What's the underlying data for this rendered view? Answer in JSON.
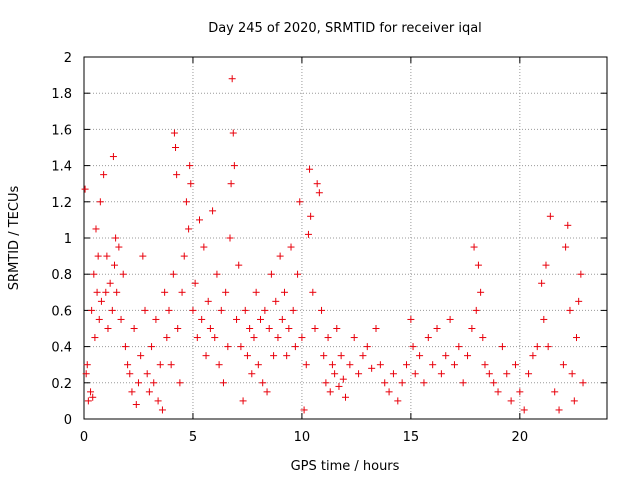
{
  "chart_data": {
    "type": "scatter",
    "title": "Day 245 of 2020, SRMTID for receiver iqal",
    "xlabel": "GPS time / hours",
    "ylabel": "SRMTID / TECUs",
    "xlim": [
      0,
      24
    ],
    "ylim": [
      0,
      2
    ],
    "x_ticks": [
      0,
      5,
      10,
      15,
      20
    ],
    "y_ticks": [
      0,
      0.2,
      0.4,
      0.6,
      0.8,
      1,
      1.2,
      1.4,
      1.6,
      1.8,
      2
    ],
    "x_tick_labels": [
      "0",
      "5",
      "10",
      "15",
      "20"
    ],
    "y_tick_labels": [
      "0",
      "0.2",
      "0.4",
      "0.6",
      "0.8",
      "1",
      "1.2",
      "1.4",
      "1.6",
      "1.8",
      "2"
    ],
    "grid": true,
    "marker": "+",
    "marker_color": "#e8000b",
    "series": [
      {
        "name": "SRMTID",
        "points": [
          [
            0.05,
            1.27
          ],
          [
            0.1,
            0.25
          ],
          [
            0.15,
            0.3
          ],
          [
            0.2,
            0.1
          ],
          [
            0.3,
            0.15
          ],
          [
            0.35,
            0.6
          ],
          [
            0.4,
            0.12
          ],
          [
            0.45,
            0.8
          ],
          [
            0.5,
            0.45
          ],
          [
            0.55,
            1.05
          ],
          [
            0.6,
            0.7
          ],
          [
            0.65,
            0.9
          ],
          [
            0.7,
            0.55
          ],
          [
            0.75,
            1.2
          ],
          [
            0.8,
            0.65
          ],
          [
            0.9,
            1.35
          ],
          [
            1.0,
            0.7
          ],
          [
            1.05,
            0.9
          ],
          [
            1.1,
            0.5
          ],
          [
            1.2,
            0.75
          ],
          [
            1.3,
            0.6
          ],
          [
            1.35,
            1.45
          ],
          [
            1.4,
            0.85
          ],
          [
            1.45,
            1.0
          ],
          [
            1.5,
            0.7
          ],
          [
            1.6,
            0.95
          ],
          [
            1.7,
            0.55
          ],
          [
            1.8,
            0.8
          ],
          [
            1.9,
            0.4
          ],
          [
            2.0,
            0.3
          ],
          [
            2.1,
            0.25
          ],
          [
            2.2,
            0.15
          ],
          [
            2.3,
            0.5
          ],
          [
            2.4,
            0.08
          ],
          [
            2.5,
            0.2
          ],
          [
            2.6,
            0.35
          ],
          [
            2.7,
            0.9
          ],
          [
            2.8,
            0.6
          ],
          [
            2.9,
            0.25
          ],
          [
            3.0,
            0.15
          ],
          [
            3.1,
            0.4
          ],
          [
            3.2,
            0.2
          ],
          [
            3.3,
            0.55
          ],
          [
            3.4,
            0.1
          ],
          [
            3.5,
            0.3
          ],
          [
            3.6,
            0.05
          ],
          [
            3.7,
            0.7
          ],
          [
            3.8,
            0.45
          ],
          [
            3.9,
            0.6
          ],
          [
            4.0,
            0.3
          ],
          [
            4.1,
            0.8
          ],
          [
            4.15,
            1.58
          ],
          [
            4.2,
            1.5
          ],
          [
            4.25,
            1.35
          ],
          [
            4.3,
            0.5
          ],
          [
            4.4,
            0.2
          ],
          [
            4.5,
            0.7
          ],
          [
            4.6,
            0.9
          ],
          [
            4.7,
            1.2
          ],
          [
            4.8,
            1.05
          ],
          [
            4.85,
            1.4
          ],
          [
            4.9,
            1.3
          ],
          [
            5.0,
            0.6
          ],
          [
            5.1,
            0.75
          ],
          [
            5.2,
            0.45
          ],
          [
            5.3,
            1.1
          ],
          [
            5.4,
            0.55
          ],
          [
            5.5,
            0.95
          ],
          [
            5.6,
            0.35
          ],
          [
            5.7,
            0.65
          ],
          [
            5.8,
            0.5
          ],
          [
            5.9,
            1.15
          ],
          [
            6.0,
            0.45
          ],
          [
            6.1,
            0.8
          ],
          [
            6.2,
            0.3
          ],
          [
            6.3,
            0.6
          ],
          [
            6.4,
            0.2
          ],
          [
            6.5,
            0.7
          ],
          [
            6.6,
            0.4
          ],
          [
            6.7,
            1.0
          ],
          [
            6.75,
            1.3
          ],
          [
            6.8,
            1.88
          ],
          [
            6.85,
            1.58
          ],
          [
            6.9,
            1.4
          ],
          [
            7.0,
            0.55
          ],
          [
            7.1,
            0.85
          ],
          [
            7.2,
            0.4
          ],
          [
            7.3,
            0.1
          ],
          [
            7.4,
            0.6
          ],
          [
            7.5,
            0.35
          ],
          [
            7.6,
            0.5
          ],
          [
            7.7,
            0.25
          ],
          [
            7.8,
            0.45
          ],
          [
            7.9,
            0.7
          ],
          [
            8.0,
            0.3
          ],
          [
            8.1,
            0.55
          ],
          [
            8.2,
            0.2
          ],
          [
            8.3,
            0.6
          ],
          [
            8.4,
            0.15
          ],
          [
            8.5,
            0.5
          ],
          [
            8.6,
            0.8
          ],
          [
            8.7,
            0.35
          ],
          [
            8.8,
            0.65
          ],
          [
            8.9,
            0.45
          ],
          [
            9.0,
            0.9
          ],
          [
            9.1,
            0.55
          ],
          [
            9.2,
            0.7
          ],
          [
            9.3,
            0.35
          ],
          [
            9.4,
            0.5
          ],
          [
            9.5,
            0.95
          ],
          [
            9.6,
            0.6
          ],
          [
            9.7,
            0.4
          ],
          [
            9.8,
            0.8
          ],
          [
            9.9,
            1.2
          ],
          [
            10.0,
            0.45
          ],
          [
            10.1,
            0.05
          ],
          [
            10.2,
            0.3
          ],
          [
            10.3,
            1.02
          ],
          [
            10.35,
            1.38
          ],
          [
            10.4,
            1.12
          ],
          [
            10.5,
            0.7
          ],
          [
            10.6,
            0.5
          ],
          [
            10.7,
            1.3
          ],
          [
            10.8,
            1.25
          ],
          [
            10.9,
            0.6
          ],
          [
            11.0,
            0.35
          ],
          [
            11.1,
            0.2
          ],
          [
            11.2,
            0.45
          ],
          [
            11.3,
            0.15
          ],
          [
            11.4,
            0.3
          ],
          [
            11.5,
            0.25
          ],
          [
            11.6,
            0.5
          ],
          [
            11.7,
            0.18
          ],
          [
            11.8,
            0.35
          ],
          [
            11.9,
            0.22
          ],
          [
            12.0,
            0.12
          ],
          [
            12.2,
            0.3
          ],
          [
            12.4,
            0.45
          ],
          [
            12.6,
            0.25
          ],
          [
            12.8,
            0.35
          ],
          [
            13.0,
            0.4
          ],
          [
            13.2,
            0.28
          ],
          [
            13.4,
            0.5
          ],
          [
            13.6,
            0.3
          ],
          [
            13.8,
            0.2
          ],
          [
            14.0,
            0.15
          ],
          [
            14.2,
            0.25
          ],
          [
            14.4,
            0.1
          ],
          [
            14.6,
            0.2
          ],
          [
            14.8,
            0.3
          ],
          [
            15.0,
            0.55
          ],
          [
            15.1,
            0.4
          ],
          [
            15.2,
            0.25
          ],
          [
            15.4,
            0.35
          ],
          [
            15.6,
            0.2
          ],
          [
            15.8,
            0.45
          ],
          [
            16.0,
            0.3
          ],
          [
            16.2,
            0.5
          ],
          [
            16.4,
            0.25
          ],
          [
            16.6,
            0.35
          ],
          [
            16.8,
            0.55
          ],
          [
            17.0,
            0.3
          ],
          [
            17.2,
            0.4
          ],
          [
            17.4,
            0.2
          ],
          [
            17.6,
            0.35
          ],
          [
            17.8,
            0.5
          ],
          [
            17.9,
            0.95
          ],
          [
            18.0,
            0.6
          ],
          [
            18.1,
            0.85
          ],
          [
            18.2,
            0.7
          ],
          [
            18.3,
            0.45
          ],
          [
            18.4,
            0.3
          ],
          [
            18.6,
            0.25
          ],
          [
            18.8,
            0.2
          ],
          [
            19.0,
            0.15
          ],
          [
            19.2,
            0.4
          ],
          [
            19.4,
            0.25
          ],
          [
            19.6,
            0.1
          ],
          [
            19.8,
            0.3
          ],
          [
            20.0,
            0.15
          ],
          [
            20.2,
            0.05
          ],
          [
            20.4,
            0.25
          ],
          [
            20.6,
            0.35
          ],
          [
            20.8,
            0.4
          ],
          [
            21.0,
            0.75
          ],
          [
            21.1,
            0.55
          ],
          [
            21.2,
            0.85
          ],
          [
            21.3,
            0.4
          ],
          [
            21.4,
            1.12
          ],
          [
            21.6,
            0.15
          ],
          [
            21.8,
            0.05
          ],
          [
            22.0,
            0.3
          ],
          [
            22.1,
            0.95
          ],
          [
            22.2,
            1.07
          ],
          [
            22.3,
            0.6
          ],
          [
            22.4,
            0.25
          ],
          [
            22.5,
            0.1
          ],
          [
            22.6,
            0.45
          ],
          [
            22.7,
            0.65
          ],
          [
            22.8,
            0.8
          ],
          [
            22.9,
            0.2
          ]
        ]
      }
    ]
  }
}
